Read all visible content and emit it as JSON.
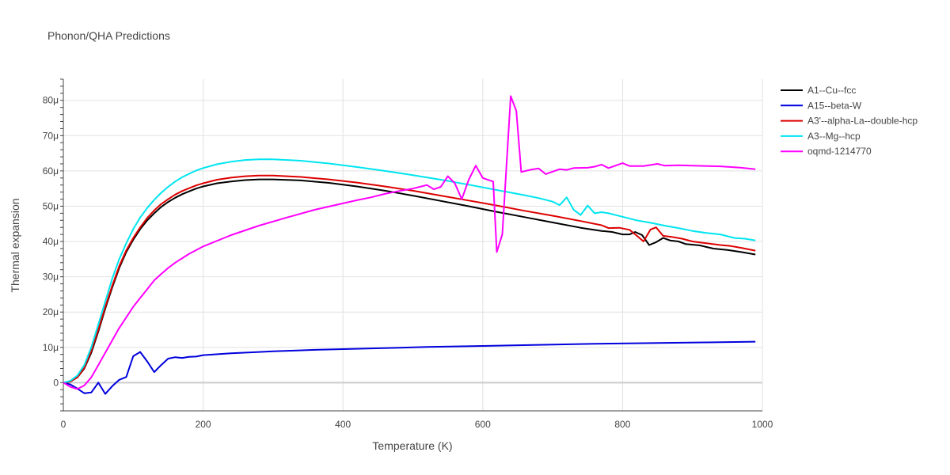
{
  "chart_data": {
    "type": "line",
    "title": "Phonon/QHA Predictions",
    "xlabel": "Temperature (K)",
    "ylabel": "Thermal expansion",
    "xlim": [
      0,
      1000
    ],
    "ylim": [
      -8,
      86
    ],
    "grid": true,
    "legend_position": "top-right",
    "x_ticks": [
      0,
      200,
      400,
      600,
      800,
      1000
    ],
    "x_tick_labels": [
      "0",
      "200",
      "400",
      "600",
      "800",
      "1000"
    ],
    "y_ticks": [
      0,
      10,
      20,
      30,
      40,
      50,
      60,
      70,
      80
    ],
    "y_tick_labels": [
      "0",
      "10μ",
      "20μ",
      "30μ",
      "40μ",
      "50μ",
      "60μ",
      "70μ",
      "80μ"
    ],
    "series": [
      {
        "name": "A1--Cu--fcc",
        "color": "#000000",
        "points": [
          [
            0,
            0
          ],
          [
            10,
            0.3
          ],
          [
            20,
            1.5
          ],
          [
            30,
            4
          ],
          [
            40,
            8.5
          ],
          [
            50,
            14.5
          ],
          [
            60,
            21
          ],
          [
            70,
            27
          ],
          [
            80,
            32.5
          ],
          [
            90,
            37
          ],
          [
            100,
            40.5
          ],
          [
            110,
            43.5
          ],
          [
            120,
            46
          ],
          [
            130,
            48
          ],
          [
            140,
            49.8
          ],
          [
            150,
            51.2
          ],
          [
            160,
            52.4
          ],
          [
            170,
            53.4
          ],
          [
            180,
            54.2
          ],
          [
            190,
            55
          ],
          [
            200,
            55.6
          ],
          [
            220,
            56.5
          ],
          [
            240,
            57
          ],
          [
            260,
            57.4
          ],
          [
            280,
            57.6
          ],
          [
            300,
            57.6
          ],
          [
            340,
            57.3
          ],
          [
            380,
            56.6
          ],
          [
            420,
            55.6
          ],
          [
            460,
            54.4
          ],
          [
            500,
            53
          ],
          [
            540,
            51.5
          ],
          [
            580,
            50
          ],
          [
            620,
            48.4
          ],
          [
            660,
            46.9
          ],
          [
            700,
            45.4
          ],
          [
            740,
            43.9
          ],
          [
            770,
            43
          ],
          [
            785,
            42.7
          ],
          [
            800,
            42
          ],
          [
            810,
            42
          ],
          [
            818,
            42.7
          ],
          [
            828,
            41.8
          ],
          [
            838,
            39
          ],
          [
            848,
            39.8
          ],
          [
            858,
            41
          ],
          [
            868,
            40.3
          ],
          [
            880,
            40
          ],
          [
            890,
            39.3
          ],
          [
            910,
            38.9
          ],
          [
            930,
            38
          ],
          [
            950,
            37.6
          ],
          [
            970,
            37
          ],
          [
            990,
            36.3
          ]
        ]
      },
      {
        "name": "A15--beta-W",
        "color": "#0000dd",
        "points": [
          [
            0,
            0
          ],
          [
            10,
            -0.5
          ],
          [
            20,
            -1.7
          ],
          [
            30,
            -3
          ],
          [
            40,
            -2.8
          ],
          [
            50,
            0
          ],
          [
            60,
            -3.2
          ],
          [
            70,
            -1
          ],
          [
            80,
            0.8
          ],
          [
            90,
            1.6
          ],
          [
            100,
            7.5
          ],
          [
            110,
            8.7
          ],
          [
            120,
            6
          ],
          [
            130,
            3
          ],
          [
            140,
            5
          ],
          [
            150,
            6.8
          ],
          [
            160,
            7.2
          ],
          [
            170,
            7
          ],
          [
            180,
            7.3
          ],
          [
            190,
            7.4
          ],
          [
            200,
            7.8
          ],
          [
            240,
            8.3
          ],
          [
            280,
            8.7
          ],
          [
            300,
            8.9
          ],
          [
            360,
            9.3
          ],
          [
            440,
            9.7
          ],
          [
            520,
            10.1
          ],
          [
            600,
            10.4
          ],
          [
            680,
            10.7
          ],
          [
            760,
            11
          ],
          [
            840,
            11.2
          ],
          [
            920,
            11.4
          ],
          [
            990,
            11.6
          ]
        ]
      },
      {
        "name": "A3'--alpha-La--double-hcp",
        "color": "#dd0000",
        "points": [
          [
            0,
            0
          ],
          [
            10,
            0.3
          ],
          [
            20,
            1.5
          ],
          [
            30,
            4.2
          ],
          [
            40,
            9
          ],
          [
            50,
            15
          ],
          [
            60,
            21.5
          ],
          [
            70,
            27.5
          ],
          [
            80,
            33
          ],
          [
            90,
            37.5
          ],
          [
            100,
            41
          ],
          [
            110,
            44
          ],
          [
            120,
            46.7
          ],
          [
            130,
            48.8
          ],
          [
            140,
            50.6
          ],
          [
            150,
            52
          ],
          [
            160,
            53.3
          ],
          [
            170,
            54.3
          ],
          [
            180,
            55.1
          ],
          [
            190,
            55.9
          ],
          [
            200,
            56.5
          ],
          [
            220,
            57.5
          ],
          [
            240,
            58.1
          ],
          [
            260,
            58.5
          ],
          [
            280,
            58.7
          ],
          [
            300,
            58.7
          ],
          [
            340,
            58.3
          ],
          [
            380,
            57.6
          ],
          [
            420,
            56.7
          ],
          [
            460,
            55.6
          ],
          [
            500,
            54.4
          ],
          [
            540,
            53
          ],
          [
            580,
            51.6
          ],
          [
            620,
            50.2
          ],
          [
            660,
            48.7
          ],
          [
            700,
            47.3
          ],
          [
            740,
            45.8
          ],
          [
            770,
            44.6
          ],
          [
            780,
            43.8
          ],
          [
            795,
            43.9
          ],
          [
            810,
            43.3
          ],
          [
            820,
            41.7
          ],
          [
            830,
            40
          ],
          [
            840,
            43.4
          ],
          [
            848,
            44
          ],
          [
            858,
            41.6
          ],
          [
            870,
            41.3
          ],
          [
            885,
            40.8
          ],
          [
            900,
            40
          ],
          [
            920,
            39.5
          ],
          [
            940,
            39
          ],
          [
            955,
            38.7
          ],
          [
            970,
            38.2
          ],
          [
            990,
            37.4
          ]
        ]
      },
      {
        "name": "A3--Mg--hcp",
        "color": "#00e5f0",
        "points": [
          [
            0,
            0
          ],
          [
            10,
            0.5
          ],
          [
            20,
            2
          ],
          [
            30,
            5
          ],
          [
            40,
            10
          ],
          [
            50,
            16.5
          ],
          [
            60,
            23
          ],
          [
            70,
            29.5
          ],
          [
            80,
            35
          ],
          [
            90,
            39.5
          ],
          [
            100,
            43.5
          ],
          [
            110,
            46.8
          ],
          [
            120,
            49.5
          ],
          [
            130,
            51.8
          ],
          [
            140,
            53.8
          ],
          [
            150,
            55.5
          ],
          [
            160,
            57
          ],
          [
            170,
            58.2
          ],
          [
            180,
            59.2
          ],
          [
            190,
            60.1
          ],
          [
            200,
            60.8
          ],
          [
            220,
            61.9
          ],
          [
            240,
            62.6
          ],
          [
            260,
            63.1
          ],
          [
            280,
            63.3
          ],
          [
            300,
            63.3
          ],
          [
            340,
            62.9
          ],
          [
            380,
            62.1
          ],
          [
            420,
            61.1
          ],
          [
            460,
            60
          ],
          [
            500,
            58.8
          ],
          [
            540,
            57.5
          ],
          [
            580,
            56.1
          ],
          [
            620,
            54.6
          ],
          [
            660,
            53.1
          ],
          [
            680,
            52.3
          ],
          [
            700,
            51.3
          ],
          [
            710,
            50.3
          ],
          [
            720,
            52.5
          ],
          [
            730,
            49
          ],
          [
            740,
            47.5
          ],
          [
            750,
            50.2
          ],
          [
            760,
            48
          ],
          [
            770,
            48.3
          ],
          [
            780,
            48
          ],
          [
            800,
            47
          ],
          [
            820,
            46
          ],
          [
            840,
            45.3
          ],
          [
            860,
            44.5
          ],
          [
            880,
            43.8
          ],
          [
            900,
            43
          ],
          [
            920,
            42.4
          ],
          [
            940,
            42
          ],
          [
            960,
            41
          ],
          [
            975,
            40.8
          ],
          [
            990,
            40.3
          ]
        ]
      },
      {
        "name": "oqmd-1214770",
        "color": "#ff00ff",
        "points": [
          [
            0,
            0
          ],
          [
            10,
            -1.2
          ],
          [
            20,
            -1.8
          ],
          [
            30,
            -0.8
          ],
          [
            40,
            1.5
          ],
          [
            50,
            5
          ],
          [
            60,
            8.5
          ],
          [
            70,
            12
          ],
          [
            80,
            15.5
          ],
          [
            90,
            18.5
          ],
          [
            100,
            21.5
          ],
          [
            110,
            24
          ],
          [
            120,
            26.5
          ],
          [
            130,
            29
          ],
          [
            140,
            30.8
          ],
          [
            150,
            32.5
          ],
          [
            160,
            34
          ],
          [
            180,
            36.5
          ],
          [
            200,
            38.6
          ],
          [
            240,
            41.8
          ],
          [
            280,
            44.5
          ],
          [
            320,
            46.8
          ],
          [
            360,
            49
          ],
          [
            400,
            50.8
          ],
          [
            420,
            51.7
          ],
          [
            440,
            52.5
          ],
          [
            460,
            53.5
          ],
          [
            480,
            54.3
          ],
          [
            500,
            55
          ],
          [
            510,
            55.5
          ],
          [
            520,
            56
          ],
          [
            530,
            54.8
          ],
          [
            540,
            55.5
          ],
          [
            550,
            58.5
          ],
          [
            560,
            56.5
          ],
          [
            570,
            52
          ],
          [
            580,
            57.5
          ],
          [
            590,
            61.5
          ],
          [
            600,
            58
          ],
          [
            610,
            57.3
          ],
          [
            615,
            57
          ],
          [
            620,
            37
          ],
          [
            628,
            42
          ],
          [
            640,
            81.2
          ],
          [
            648,
            77
          ],
          [
            655,
            59.7
          ],
          [
            670,
            60.4
          ],
          [
            680,
            60.7
          ],
          [
            690,
            59.1
          ],
          [
            710,
            60.5
          ],
          [
            720,
            60.3
          ],
          [
            730,
            60.8
          ],
          [
            750,
            60.9
          ],
          [
            760,
            61.2
          ],
          [
            770,
            61.8
          ],
          [
            780,
            60.8
          ],
          [
            800,
            62.2
          ],
          [
            810,
            61.4
          ],
          [
            830,
            61.4
          ],
          [
            850,
            62
          ],
          [
            860,
            61.5
          ],
          [
            880,
            61.6
          ],
          [
            900,
            61.5
          ],
          [
            940,
            61.3
          ],
          [
            970,
            60.9
          ],
          [
            990,
            60.5
          ]
        ]
      }
    ]
  }
}
